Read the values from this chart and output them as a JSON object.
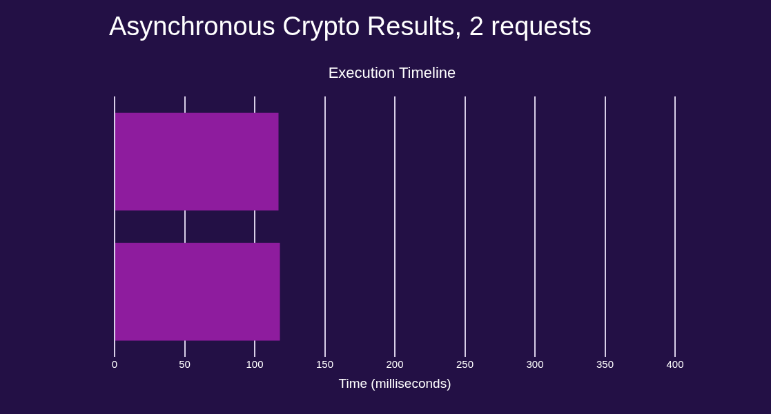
{
  "chart_data": {
    "type": "bar",
    "orientation": "horizontal",
    "title": "Asynchronous Crypto Results, 2 requests",
    "subtitle": "Execution Timeline",
    "xlabel": "Time (milliseconds)",
    "categories": [
      null,
      null
    ],
    "values": [
      117,
      118
    ],
    "color": "#8e1c9e",
    "xlim": [
      0,
      400
    ],
    "xticks": [
      0,
      50,
      100,
      150,
      200,
      250,
      300,
      350,
      400
    ],
    "grid": "x",
    "tick_labels": "x"
  }
}
